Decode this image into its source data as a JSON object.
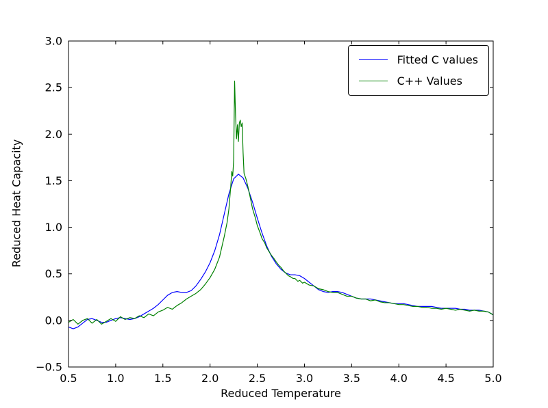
{
  "figure": {
    "background": "#ffffff",
    "frame_color": "#000000"
  },
  "chart_data": {
    "type": "line",
    "title": "",
    "xlabel": "Reduced Temperature",
    "ylabel": "Reduced Heat Capacity",
    "xlim": [
      0.5,
      5.0
    ],
    "ylim": [
      -0.5,
      3.0
    ],
    "xticks": [
      0.5,
      1.0,
      1.5,
      2.0,
      2.5,
      3.0,
      3.5,
      4.0,
      4.5,
      5.0
    ],
    "yticks": [
      -0.5,
      0.0,
      0.5,
      1.0,
      1.5,
      2.0,
      2.5,
      3.0
    ],
    "grid": false,
    "legend_position": "upper right",
    "series": [
      {
        "name": "Fitted C values",
        "color": "#0000ff",
        "x": [
          0.5,
          0.55,
          0.6,
          0.65,
          0.7,
          0.75,
          0.8,
          0.85,
          0.9,
          0.95,
          1.0,
          1.05,
          1.1,
          1.15,
          1.2,
          1.25,
          1.3,
          1.35,
          1.4,
          1.45,
          1.5,
          1.55,
          1.6,
          1.65,
          1.7,
          1.75,
          1.8,
          1.85,
          1.9,
          1.95,
          2.0,
          2.05,
          2.1,
          2.15,
          2.2,
          2.25,
          2.3,
          2.35,
          2.4,
          2.45,
          2.5,
          2.55,
          2.6,
          2.65,
          2.7,
          2.75,
          2.8,
          2.85,
          2.9,
          2.95,
          3.0,
          3.05,
          3.1,
          3.15,
          3.2,
          3.25,
          3.3,
          3.35,
          3.4,
          3.45,
          3.5,
          3.55,
          3.6,
          3.65,
          3.7,
          3.75,
          3.8,
          3.85,
          3.9,
          3.95,
          4.0,
          4.05,
          4.1,
          4.15,
          4.2,
          4.25,
          4.3,
          4.35,
          4.4,
          4.45,
          4.5,
          4.55,
          4.6,
          4.65,
          4.7,
          4.75,
          4.8,
          4.85,
          4.9,
          4.95,
          5.0
        ],
        "y": [
          -0.07,
          -0.09,
          -0.07,
          -0.03,
          0.01,
          0.02,
          0.0,
          -0.02,
          -0.02,
          0.0,
          0.02,
          0.03,
          0.02,
          0.01,
          0.02,
          0.04,
          0.07,
          0.1,
          0.13,
          0.17,
          0.22,
          0.27,
          0.3,
          0.31,
          0.3,
          0.3,
          0.32,
          0.37,
          0.44,
          0.52,
          0.62,
          0.75,
          0.92,
          1.14,
          1.36,
          1.52,
          1.57,
          1.53,
          1.42,
          1.27,
          1.1,
          0.94,
          0.8,
          0.69,
          0.61,
          0.55,
          0.51,
          0.49,
          0.49,
          0.48,
          0.45,
          0.41,
          0.37,
          0.33,
          0.31,
          0.3,
          0.31,
          0.31,
          0.3,
          0.28,
          0.26,
          0.24,
          0.23,
          0.23,
          0.23,
          0.22,
          0.21,
          0.2,
          0.19,
          0.18,
          0.18,
          0.18,
          0.17,
          0.16,
          0.15,
          0.15,
          0.15,
          0.15,
          0.14,
          0.13,
          0.13,
          0.13,
          0.13,
          0.12,
          0.12,
          0.11,
          0.11,
          0.11,
          0.1,
          0.09,
          0.06
        ]
      },
      {
        "name": "C++ Values",
        "color": "#008000",
        "x": [
          0.5,
          0.55,
          0.6,
          0.65,
          0.7,
          0.75,
          0.8,
          0.85,
          0.9,
          0.95,
          1.0,
          1.05,
          1.1,
          1.15,
          1.2,
          1.25,
          1.3,
          1.35,
          1.4,
          1.45,
          1.5,
          1.55,
          1.6,
          1.65,
          1.7,
          1.75,
          1.8,
          1.85,
          1.9,
          1.95,
          2.0,
          2.05,
          2.1,
          2.15,
          2.18,
          2.2,
          2.22,
          2.23,
          2.24,
          2.25,
          2.26,
          2.27,
          2.28,
          2.29,
          2.3,
          2.31,
          2.32,
          2.33,
          2.34,
          2.35,
          2.36,
          2.38,
          2.4,
          2.43,
          2.45,
          2.48,
          2.5,
          2.53,
          2.55,
          2.58,
          2.6,
          2.63,
          2.65,
          2.68,
          2.7,
          2.73,
          2.75,
          2.78,
          2.8,
          2.83,
          2.85,
          2.88,
          2.9,
          2.93,
          2.95,
          2.98,
          3.0,
          3.05,
          3.1,
          3.15,
          3.2,
          3.25,
          3.3,
          3.35,
          3.4,
          3.45,
          3.5,
          3.55,
          3.6,
          3.65,
          3.7,
          3.75,
          3.8,
          3.85,
          3.9,
          3.95,
          4.0,
          4.05,
          4.1,
          4.15,
          4.2,
          4.25,
          4.3,
          4.35,
          4.4,
          4.45,
          4.5,
          4.55,
          4.6,
          4.65,
          4.7,
          4.75,
          4.8,
          4.85,
          4.9,
          4.95,
          5.0
        ],
        "y": [
          -0.02,
          0.01,
          -0.04,
          0.0,
          0.02,
          -0.03,
          0.01,
          -0.04,
          -0.01,
          0.02,
          -0.01,
          0.04,
          0.01,
          0.03,
          0.02,
          0.05,
          0.03,
          0.07,
          0.05,
          0.09,
          0.11,
          0.14,
          0.12,
          0.16,
          0.19,
          0.23,
          0.26,
          0.29,
          0.33,
          0.39,
          0.46,
          0.55,
          0.68,
          0.9,
          1.05,
          1.2,
          1.45,
          1.6,
          1.55,
          1.72,
          2.57,
          2.2,
          1.95,
          2.1,
          1.92,
          2.12,
          2.15,
          2.08,
          2.12,
          1.8,
          1.58,
          1.52,
          1.44,
          1.3,
          1.2,
          1.1,
          1.02,
          0.94,
          0.88,
          0.83,
          0.78,
          0.73,
          0.7,
          0.66,
          0.63,
          0.59,
          0.57,
          0.53,
          0.51,
          0.48,
          0.47,
          0.45,
          0.45,
          0.42,
          0.43,
          0.4,
          0.41,
          0.38,
          0.37,
          0.34,
          0.33,
          0.31,
          0.3,
          0.3,
          0.28,
          0.26,
          0.26,
          0.24,
          0.23,
          0.23,
          0.21,
          0.22,
          0.2,
          0.19,
          0.19,
          0.18,
          0.17,
          0.17,
          0.16,
          0.15,
          0.15,
          0.14,
          0.14,
          0.13,
          0.13,
          0.12,
          0.13,
          0.12,
          0.11,
          0.12,
          0.11,
          0.1,
          0.11,
          0.1,
          0.1,
          0.09,
          0.06
        ]
      }
    ]
  }
}
